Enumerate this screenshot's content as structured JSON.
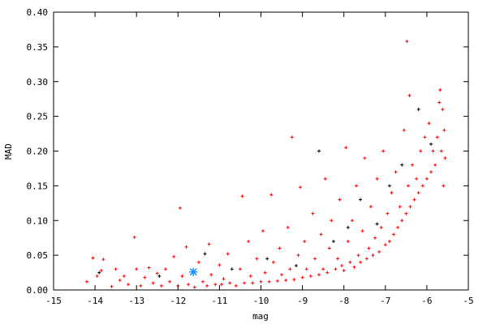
{
  "chart_data": {
    "type": "scatter",
    "title": "",
    "xlabel": "mag",
    "ylabel": "MAD",
    "xlim": [
      -15,
      -5
    ],
    "ylim": [
      0,
      0.4
    ],
    "grid": false,
    "legend": "none",
    "xticks": [
      "-15",
      "-14",
      "-13",
      "-12",
      "-11",
      "-10",
      "-9",
      "-8",
      "-7",
      "-6",
      "-5"
    ],
    "yticks": [
      "0.00",
      "0.05",
      "0.10",
      "0.15",
      "0.20",
      "0.25",
      "0.30",
      "0.35",
      "0.40"
    ],
    "colors": {
      "points": "#ff0000",
      "secondary_points": "#000000",
      "highlight": "#1e90ff"
    },
    "series": [
      {
        "color": "#ff0000",
        "marker": "plus",
        "points": [
          [
            -14.2,
            0.012
          ],
          [
            -14.05,
            0.046
          ],
          [
            -13.95,
            0.02
          ],
          [
            -13.85,
            0.028
          ],
          [
            -13.8,
            0.044
          ],
          [
            -13.6,
            0.005
          ],
          [
            -13.5,
            0.03
          ],
          [
            -13.4,
            0.014
          ],
          [
            -13.3,
            0.02
          ],
          [
            -13.2,
            0.008
          ],
          [
            -13.05,
            0.076
          ],
          [
            -13.0,
            0.03
          ],
          [
            -12.9,
            0.006
          ],
          [
            -12.8,
            0.018
          ],
          [
            -12.7,
            0.032
          ],
          [
            -12.6,
            0.01
          ],
          [
            -12.5,
            0.024
          ],
          [
            -12.4,
            0.006
          ],
          [
            -12.3,
            0.03
          ],
          [
            -12.2,
            0.012
          ],
          [
            -12.1,
            0.048
          ],
          [
            -12.0,
            0.006
          ],
          [
            -11.95,
            0.118
          ],
          [
            -11.9,
            0.02
          ],
          [
            -11.8,
            0.062
          ],
          [
            -11.75,
            0.008
          ],
          [
            -11.6,
            0.004
          ],
          [
            -11.5,
            0.04
          ],
          [
            -11.4,
            0.012
          ],
          [
            -11.3,
            0.006
          ],
          [
            -11.25,
            0.066
          ],
          [
            -11.2,
            0.022
          ],
          [
            -11.1,
            0.008
          ],
          [
            -11.0,
            0.036
          ],
          [
            -10.95,
            0.008
          ],
          [
            -10.9,
            0.016
          ],
          [
            -10.8,
            0.052
          ],
          [
            -10.75,
            0.01
          ],
          [
            -10.6,
            0.006
          ],
          [
            -10.5,
            0.03
          ],
          [
            -10.45,
            0.135
          ],
          [
            -10.4,
            0.01
          ],
          [
            -10.3,
            0.07
          ],
          [
            -10.25,
            0.02
          ],
          [
            -10.2,
            0.01
          ],
          [
            -10.1,
            0.045
          ],
          [
            -10.0,
            0.012
          ],
          [
            -9.95,
            0.085
          ],
          [
            -9.9,
            0.025
          ],
          [
            -9.8,
            0.012
          ],
          [
            -9.75,
            0.137
          ],
          [
            -9.7,
            0.04
          ],
          [
            -9.6,
            0.013
          ],
          [
            -9.55,
            0.06
          ],
          [
            -9.5,
            0.022
          ],
          [
            -9.4,
            0.014
          ],
          [
            -9.35,
            0.09
          ],
          [
            -9.3,
            0.03
          ],
          [
            -9.25,
            0.22
          ],
          [
            -9.2,
            0.015
          ],
          [
            -9.1,
            0.05
          ],
          [
            -9.05,
            0.148
          ],
          [
            -9.0,
            0.018
          ],
          [
            -8.95,
            0.07
          ],
          [
            -8.9,
            0.03
          ],
          [
            -8.8,
            0.02
          ],
          [
            -8.75,
            0.11
          ],
          [
            -8.7,
            0.045
          ],
          [
            -8.6,
            0.022
          ],
          [
            -8.55,
            0.08
          ],
          [
            -8.5,
            0.03
          ],
          [
            -8.45,
            0.16
          ],
          [
            -8.4,
            0.025
          ],
          [
            -8.35,
            0.06
          ],
          [
            -8.3,
            0.1
          ],
          [
            -8.2,
            0.03
          ],
          [
            -8.15,
            0.045
          ],
          [
            -8.1,
            0.13
          ],
          [
            -8.05,
            0.035
          ],
          [
            -8.0,
            0.028
          ],
          [
            -7.95,
            0.205
          ],
          [
            -7.9,
            0.07
          ],
          [
            -7.85,
            0.04
          ],
          [
            -7.8,
            0.1
          ],
          [
            -7.75,
            0.033
          ],
          [
            -7.7,
            0.15
          ],
          [
            -7.65,
            0.05
          ],
          [
            -7.6,
            0.04
          ],
          [
            -7.55,
            0.085
          ],
          [
            -7.5,
            0.19
          ],
          [
            -7.45,
            0.045
          ],
          [
            -7.4,
            0.06
          ],
          [
            -7.35,
            0.12
          ],
          [
            -7.3,
            0.05
          ],
          [
            -7.25,
            0.075
          ],
          [
            -7.2,
            0.16
          ],
          [
            -7.15,
            0.055
          ],
          [
            -7.1,
            0.09
          ],
          [
            -7.05,
            0.2
          ],
          [
            -7.0,
            0.065
          ],
          [
            -6.95,
            0.11
          ],
          [
            -6.9,
            0.07
          ],
          [
            -6.85,
            0.14
          ],
          [
            -6.8,
            0.08
          ],
          [
            -6.75,
            0.17
          ],
          [
            -6.7,
            0.09
          ],
          [
            -6.65,
            0.12
          ],
          [
            -6.6,
            0.1
          ],
          [
            -6.55,
            0.23
          ],
          [
            -6.5,
            0.11
          ],
          [
            -6.48,
            0.358
          ],
          [
            -6.45,
            0.15
          ],
          [
            -6.42,
            0.28
          ],
          [
            -6.4,
            0.12
          ],
          [
            -6.35,
            0.18
          ],
          [
            -6.3,
            0.13
          ],
          [
            -6.25,
            0.16
          ],
          [
            -6.2,
            0.14
          ],
          [
            -6.15,
            0.2
          ],
          [
            -6.1,
            0.15
          ],
          [
            -6.05,
            0.22
          ],
          [
            -6.0,
            0.16
          ],
          [
            -5.95,
            0.24
          ],
          [
            -5.9,
            0.17
          ],
          [
            -5.85,
            0.2
          ],
          [
            -5.8,
            0.18
          ],
          [
            -5.75,
            0.22
          ],
          [
            -5.7,
            0.27
          ],
          [
            -5.68,
            0.288
          ],
          [
            -5.65,
            0.2
          ],
          [
            -5.62,
            0.26
          ],
          [
            -5.6,
            0.15
          ],
          [
            -5.58,
            0.23
          ],
          [
            -5.56,
            0.19
          ]
        ]
      },
      {
        "color": "#000000",
        "marker": "plus",
        "points": [
          [
            -13.9,
            0.025
          ],
          [
            -12.45,
            0.02
          ],
          [
            -11.35,
            0.052
          ],
          [
            -10.7,
            0.03
          ],
          [
            -9.85,
            0.045
          ],
          [
            -9.15,
            0.035
          ],
          [
            -8.6,
            0.2
          ],
          [
            -8.25,
            0.07
          ],
          [
            -7.9,
            0.09
          ],
          [
            -7.6,
            0.13
          ],
          [
            -7.2,
            0.095
          ],
          [
            -6.9,
            0.15
          ],
          [
            -6.6,
            0.18
          ],
          [
            -6.2,
            0.26
          ],
          [
            -5.9,
            0.21
          ]
        ]
      }
    ],
    "highlight": {
      "x": -11.63,
      "y": 0.026,
      "color": "#1e90ff",
      "marker": "star"
    }
  }
}
